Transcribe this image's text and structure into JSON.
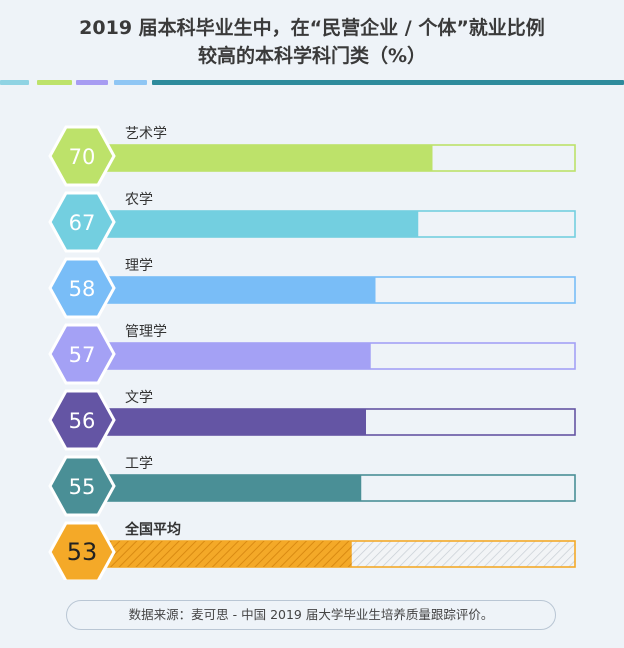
{
  "title": {
    "line1": "2019 届本科毕业生中，在“民营企业 / 个体”就业比例",
    "line2": "较高的本科学科门类（%）"
  },
  "stripes": [
    "#8fd3e3",
    "#bde26a",
    "#a79cf2",
    "#8fc6f4",
    "#2e8b9c"
  ],
  "source": "数据来源：麦可思 - 中国 2019 届大学毕业生培养质量跟踪评价。",
  "chart_data": {
    "type": "bar",
    "orientation": "horizontal",
    "xlim": [
      0,
      100
    ],
    "categories": [
      "艺术学",
      "农学",
      "理学",
      "管理学",
      "文学",
      "工学",
      "全国平均"
    ],
    "values": [
      70,
      67,
      58,
      57,
      56,
      55,
      53
    ],
    "colors": [
      "#bde26a",
      "#73cfe0",
      "#79bdf7",
      "#a4a1f5",
      "#6455a4",
      "#4a8f96",
      "#f4a928"
    ],
    "highlight_last": true
  }
}
